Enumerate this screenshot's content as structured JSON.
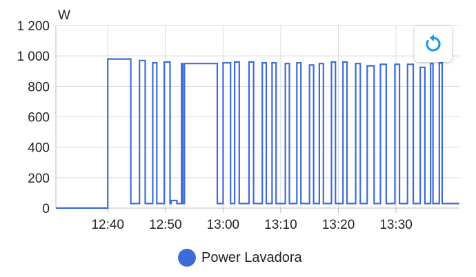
{
  "chart_data": {
    "type": "line",
    "ylabel": "W",
    "ylim": [
      0,
      1200
    ],
    "yticks": [
      {
        "value": 0,
        "label": "0"
      },
      {
        "value": 200,
        "label": "200"
      },
      {
        "value": 400,
        "label": "400"
      },
      {
        "value": 600,
        "label": "600"
      },
      {
        "value": 800,
        "label": "800"
      },
      {
        "value": 1000,
        "label": "1 000"
      },
      {
        "value": 1200,
        "label": "1 200"
      }
    ],
    "xlim": [
      "12:31",
      "13:41"
    ],
    "xticks": [
      "12:40",
      "12:50",
      "13:00",
      "13:10",
      "13:20",
      "13:30"
    ],
    "grid": true,
    "step": true,
    "legend_position": "bottom",
    "series": [
      {
        "name": "Power Lavadora",
        "color": "#3e6bd6",
        "points": [
          [
            "12:31",
            0
          ],
          [
            "12:39",
            0
          ],
          [
            "12:40",
            980
          ],
          [
            "12:44",
            30
          ],
          [
            "12:45.5",
            970
          ],
          [
            "12:46.5",
            30
          ],
          [
            "12:47.8",
            955
          ],
          [
            "12:48.5",
            30
          ],
          [
            "12:49.8",
            960
          ],
          [
            "12:50.8",
            30
          ],
          [
            "12:51",
            50
          ],
          [
            "12:52",
            30
          ],
          [
            "12:52.8",
            950
          ],
          [
            "12:53",
            30
          ],
          [
            "12:53.3",
            950
          ],
          [
            "12:59",
            30
          ],
          [
            "13:00",
            955
          ],
          [
            "13:01.3",
            30
          ],
          [
            "13:02",
            960
          ],
          [
            "13:02.8",
            30
          ],
          [
            "13:04.5",
            960
          ],
          [
            "13:05.3",
            30
          ],
          [
            "13:06.8",
            955
          ],
          [
            "13:07.5",
            30
          ],
          [
            "13:08.5",
            955
          ],
          [
            "13:09.2",
            30
          ],
          [
            "13:10.8",
            950
          ],
          [
            "13:11.5",
            30
          ],
          [
            "13:12.8",
            955
          ],
          [
            "13:13.5",
            30
          ],
          [
            "13:15",
            940
          ],
          [
            "13:15.7",
            30
          ],
          [
            "13:16.7",
            950
          ],
          [
            "13:17.4",
            30
          ],
          [
            "13:18.8",
            960
          ],
          [
            "13:19.5",
            30
          ],
          [
            "13:20.8",
            960
          ],
          [
            "13:21.5",
            30
          ],
          [
            "13:23",
            950
          ],
          [
            "13:23.8",
            30
          ],
          [
            "13:25",
            935
          ],
          [
            "13:26.2",
            30
          ],
          [
            "13:27.3",
            945
          ],
          [
            "13:28.3",
            30
          ],
          [
            "13:29.8",
            945
          ],
          [
            "13:30.6",
            30
          ],
          [
            "13:32",
            945
          ],
          [
            "13:33",
            30
          ],
          [
            "13:34.2",
            925
          ],
          [
            "13:35",
            30
          ],
          [
            "13:36",
            950
          ],
          [
            "13:36.4",
            30
          ],
          [
            "13:37.5",
            955
          ],
          [
            "13:38",
            30
          ],
          [
            "13:41",
            30
          ]
        ]
      }
    ]
  },
  "legend": {
    "label": "Power Lavadora"
  },
  "controls": {
    "reset_icon": "refresh-icon"
  }
}
